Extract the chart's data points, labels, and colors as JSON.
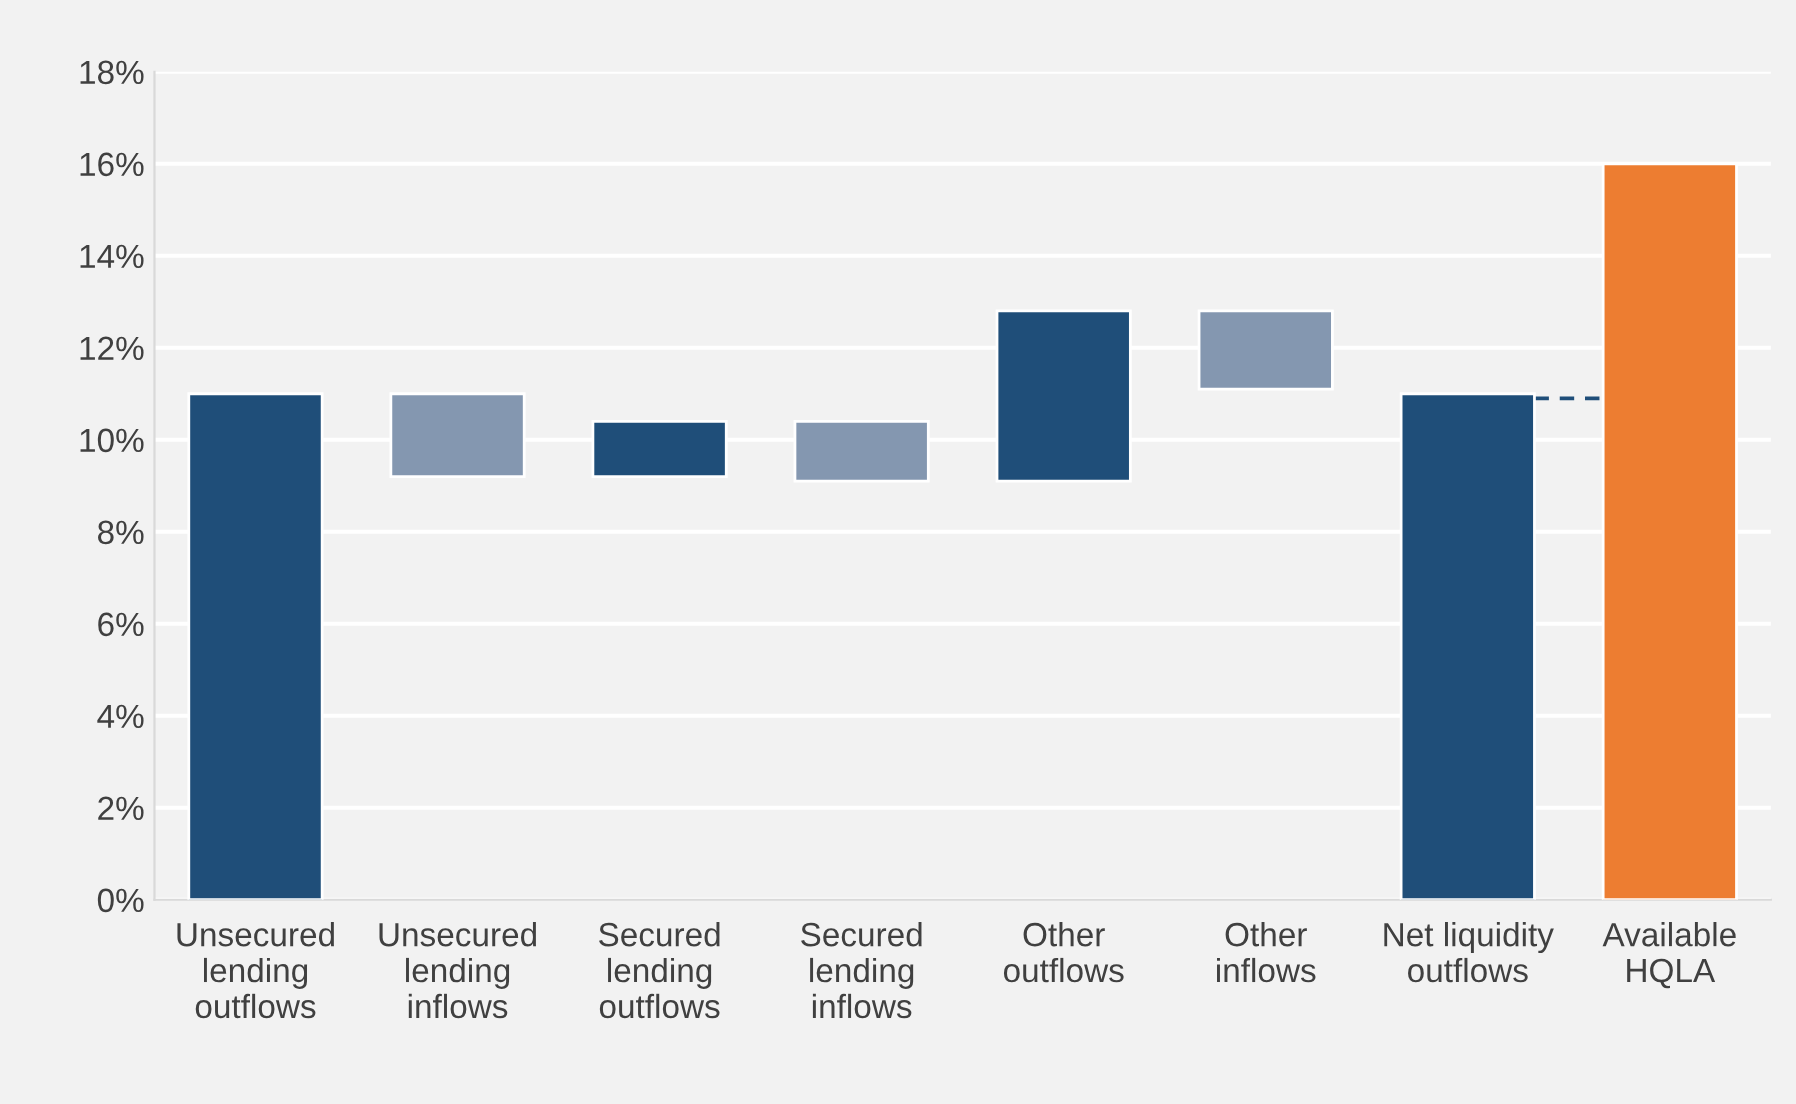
{
  "chart_data": {
    "type": "bar",
    "categories": [
      "Unsecured\nlending\noutflows",
      "Unsecured\nlending\ninflows",
      "Secured\nlending\noutflows",
      "Secured\nlending\ninflows",
      "Other\noutflows",
      "Other\ninflows",
      "Net liquidity\noutflows",
      "Available\nHQLA"
    ],
    "values": [
      11.0,
      1.8,
      1.2,
      1.3,
      3.7,
      1.7,
      11.0,
      16.0
    ],
    "base": [
      0,
      9.2,
      9.2,
      9.1,
      9.1,
      11.1,
      0,
      0
    ],
    "colors": [
      "#1f4e79",
      "#8497b0",
      "#1f4e79",
      "#8497b0",
      "#1f4e79",
      "#8497b0",
      "#1f4e79",
      "#ed7d31"
    ],
    "ylim": [
      0,
      18
    ],
    "yticks": [
      {
        "value": 0,
        "label": "0%"
      },
      {
        "value": 2,
        "label": "2%"
      },
      {
        "value": 4,
        "label": "4%"
      },
      {
        "value": 6,
        "label": "6%"
      },
      {
        "value": 8,
        "label": "8%"
      },
      {
        "value": 10,
        "label": "10%"
      },
      {
        "value": 12,
        "label": "12%"
      },
      {
        "value": 14,
        "label": "14%"
      },
      {
        "value": 16,
        "label": "16%"
      },
      {
        "value": 18,
        "label": "18%"
      }
    ],
    "ref_lines": [
      {
        "axis": "y",
        "value": 10.9,
        "color": "#1f4e79",
        "line_style": "dashed"
      }
    ],
    "grid": "y",
    "legend": false
  }
}
